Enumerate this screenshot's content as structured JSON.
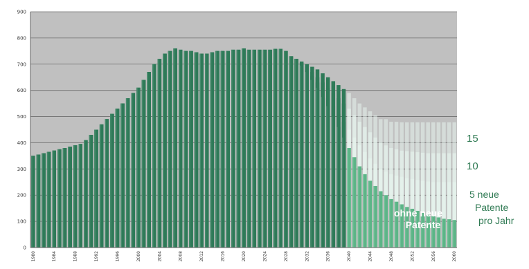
{
  "chart_data": {
    "type": "bar",
    "xlabel": "",
    "ylabel": "",
    "ylim": [
      0,
      900
    ],
    "y_ticks": [
      0,
      100,
      200,
      300,
      400,
      500,
      600,
      700,
      800,
      900
    ],
    "x_tick_labels": [
      "1980",
      "1984",
      "1988",
      "1992",
      "1996",
      "2000",
      "2004",
      "2008",
      "2012",
      "2016",
      "2020",
      "2024",
      "2028",
      "2032",
      "2036",
      "2040",
      "2044",
      "2048",
      "2052",
      "2056",
      "2060"
    ],
    "grid": true,
    "background_color": "#c0c0c0",
    "bar_colors": {
      "historical": "#2e7a58",
      "projection": "#5cb587"
    },
    "years": [
      1980,
      1981,
      1982,
      1983,
      1984,
      1985,
      1986,
      1987,
      1988,
      1989,
      1990,
      1991,
      1992,
      1993,
      1994,
      1995,
      1996,
      1997,
      1998,
      1999,
      2000,
      2001,
      2002,
      2003,
      2004,
      2005,
      2006,
      2007,
      2008,
      2009,
      2010,
      2011,
      2012,
      2013,
      2014,
      2015,
      2016,
      2017,
      2018,
      2019,
      2020,
      2021,
      2022,
      2023,
      2024,
      2025,
      2026,
      2027,
      2028,
      2029,
      2030,
      2031,
      2032,
      2033,
      2034,
      2035,
      2036,
      2037,
      2038,
      2039,
      2040,
      2041,
      2042,
      2043,
      2044,
      2045,
      2046,
      2047,
      2048,
      2049,
      2050,
      2051,
      2052,
      2053,
      2054,
      2055,
      2056,
      2057,
      2058,
      2059,
      2060
    ],
    "historical_last_year": 2039,
    "series": [
      {
        "name": "15",
        "values": [
          350,
          355,
          360,
          365,
          370,
          375,
          380,
          385,
          390,
          395,
          410,
          430,
          450,
          470,
          490,
          510,
          530,
          550,
          570,
          590,
          610,
          640,
          670,
          700,
          720,
          740,
          750,
          760,
          755,
          750,
          750,
          745,
          740,
          740,
          745,
          750,
          750,
          750,
          755,
          755,
          760,
          755,
          755,
          755,
          755,
          755,
          758,
          758,
          750,
          730,
          720,
          710,
          700,
          690,
          680,
          665,
          650,
          635,
          620,
          605,
          590,
          570,
          550,
          535,
          520,
          505,
          490,
          490,
          480,
          480,
          478,
          478,
          478,
          478,
          478,
          478,
          478,
          478,
          478,
          478,
          478
        ]
      },
      {
        "name": "10",
        "values": [
          350,
          355,
          360,
          365,
          370,
          375,
          380,
          385,
          390,
          395,
          410,
          430,
          450,
          470,
          490,
          510,
          530,
          550,
          570,
          590,
          610,
          640,
          670,
          700,
          720,
          740,
          750,
          760,
          755,
          750,
          750,
          745,
          740,
          740,
          745,
          750,
          750,
          750,
          755,
          755,
          760,
          755,
          755,
          755,
          755,
          755,
          758,
          758,
          750,
          730,
          720,
          705,
          690,
          670,
          650,
          630,
          610,
          590,
          570,
          550,
          530,
          505,
          480,
          460,
          440,
          420,
          400,
          390,
          380,
          375,
          370,
          368,
          366,
          364,
          362,
          360,
          360,
          360,
          360,
          360,
          360
        ]
      },
      {
        "name": "5",
        "values": [
          350,
          355,
          360,
          365,
          370,
          375,
          380,
          385,
          390,
          395,
          410,
          430,
          450,
          470,
          490,
          510,
          530,
          550,
          570,
          590,
          610,
          640,
          670,
          700,
          720,
          740,
          750,
          760,
          755,
          750,
          750,
          745,
          740,
          740,
          745,
          750,
          750,
          750,
          755,
          755,
          760,
          755,
          755,
          755,
          755,
          755,
          758,
          758,
          750,
          730,
          720,
          700,
          680,
          655,
          630,
          600,
          570,
          540,
          510,
          480,
          450,
          420,
          390,
          365,
          340,
          320,
          300,
          290,
          280,
          275,
          270,
          265,
          262,
          258,
          255,
          252,
          250,
          250,
          250,
          250,
          250
        ]
      },
      {
        "name": "ohne neue Patente",
        "values": [
          350,
          355,
          360,
          365,
          370,
          375,
          380,
          385,
          390,
          395,
          410,
          430,
          450,
          470,
          490,
          510,
          530,
          550,
          570,
          590,
          610,
          640,
          670,
          700,
          720,
          740,
          750,
          760,
          755,
          750,
          750,
          745,
          740,
          740,
          745,
          750,
          750,
          750,
          755,
          755,
          760,
          755,
          755,
          755,
          755,
          755,
          758,
          758,
          750,
          730,
          720,
          695,
          670,
          640,
          610,
          575,
          540,
          500,
          460,
          420,
          380,
          345,
          310,
          280,
          255,
          235,
          215,
          200,
          185,
          175,
          165,
          155,
          148,
          140,
          132,
          125,
          120,
          115,
          110,
          108,
          105
        ]
      }
    ]
  },
  "annotations": {
    "label_15": "15",
    "label_10": "10",
    "label_5_line1": "5 neue",
    "label_5_line2": "Patente",
    "label_5_line3": "pro Jahr",
    "label_inside_line1": "ohne neue",
    "label_inside_line2": "Patente"
  }
}
